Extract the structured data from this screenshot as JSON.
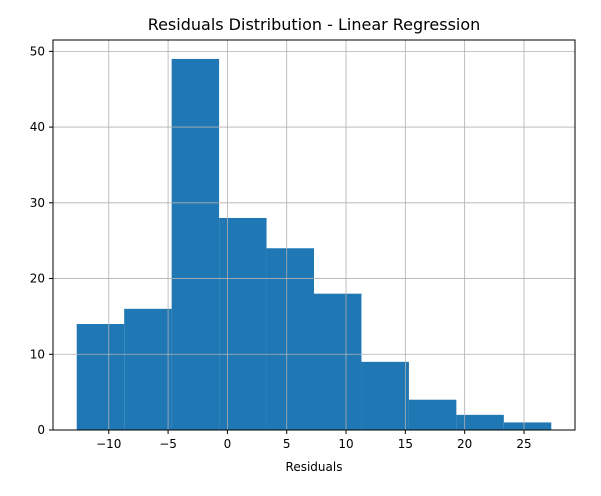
{
  "chart_data": {
    "type": "bar",
    "subtype": "histogram",
    "title": "Residuals Distribution - Linear Regression",
    "xlabel": "Residuals",
    "ylabel": "",
    "bin_edges": [
      -12.7,
      -8.7,
      -4.7,
      -0.7,
      3.3,
      7.3,
      11.3,
      15.3,
      19.3,
      23.3,
      27.3
    ],
    "values": [
      14,
      16,
      49,
      28,
      24,
      18,
      9,
      4,
      2,
      1
    ],
    "xlim": [
      -14.7,
      29.3
    ],
    "ylim": [
      0,
      51.5
    ],
    "xticks": [
      -10,
      -5,
      0,
      5,
      10,
      15,
      20,
      25
    ],
    "xtick_labels": [
      "−10",
      "−5",
      "0",
      "5",
      "10",
      "15",
      "20",
      "25"
    ],
    "yticks": [
      0,
      10,
      20,
      30,
      40,
      50
    ],
    "ytick_labels": [
      "0",
      "10",
      "20",
      "30",
      "40",
      "50"
    ],
    "grid": true,
    "bar_color": "#1f77b4",
    "grid_color": "#b0b0b0"
  }
}
